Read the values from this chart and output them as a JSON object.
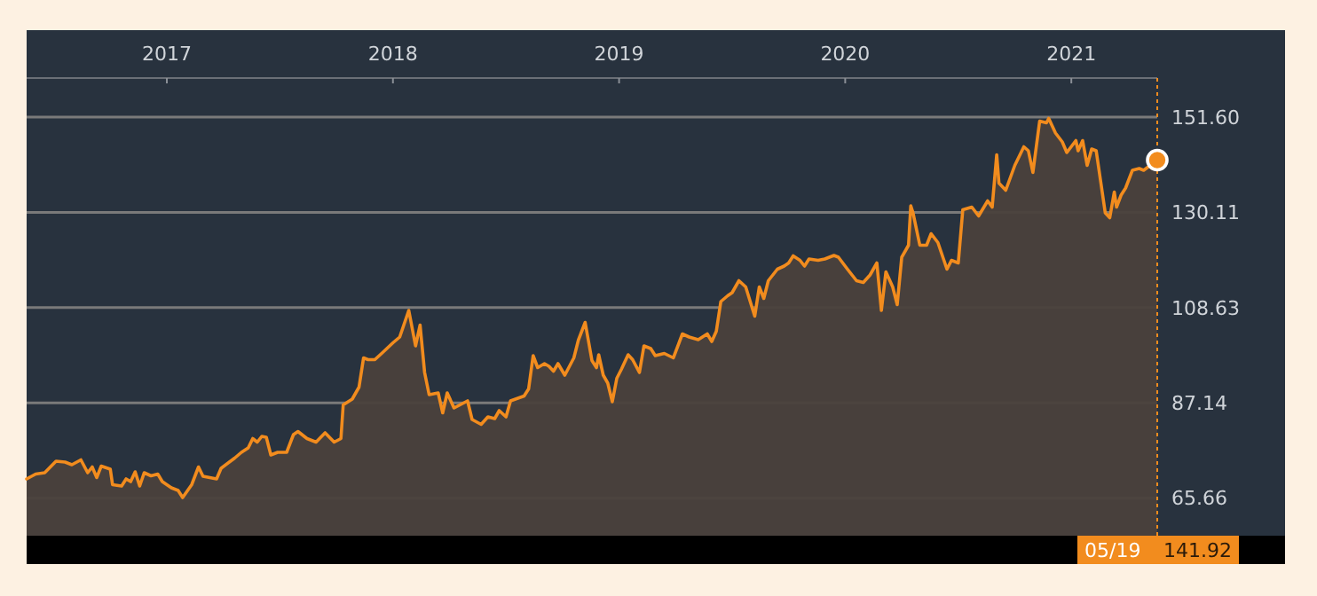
{
  "chart_data": {
    "type": "area",
    "xlim": [
      2016.38,
      2021.38
    ],
    "ylim": [
      57.2,
      160.4
    ],
    "xticks": [
      2017,
      2018,
      2019,
      2020,
      2021
    ],
    "yticks": [
      65.66,
      87.14,
      108.63,
      130.11,
      {
        "value": 151.6,
        "label": "151.60"
      }
    ],
    "grid": "y",
    "marker": "none",
    "line_style": "solid",
    "annotations": [
      "05/19 141.92"
    ],
    "series": [
      {
        "color": "#f28c1e",
        "x": [
          2016.38,
          2016.42,
          2016.46,
          2016.51,
          2016.55,
          2016.58,
          2016.62,
          2016.65,
          2016.67,
          2016.69,
          2016.71,
          2016.75,
          2016.76,
          2016.8,
          2016.82,
          2016.84,
          2016.86,
          2016.88,
          2016.9,
          2016.93,
          2016.96,
          2016.98,
          2017.02,
          2017.05,
          2017.07,
          2017.11,
          2017.14,
          2017.16,
          2017.22,
          2017.24,
          2017.3,
          2017.33,
          2017.36,
          2017.38,
          2017.4,
          2017.42,
          2017.44,
          2017.46,
          2017.49,
          2017.53,
          2017.56,
          2017.58,
          2017.62,
          2017.66,
          2017.7,
          2017.74,
          2017.77,
          2017.78,
          2017.82,
          2017.85,
          2017.87,
          2017.89,
          2017.92,
          2017.95,
          2018.0,
          2018.03,
          2018.07,
          2018.1,
          2018.12,
          2018.14,
          2018.16,
          2018.2,
          2018.22,
          2018.24,
          2018.27,
          2018.33,
          2018.35,
          2018.39,
          2018.42,
          2018.45,
          2018.47,
          2018.5,
          2018.52,
          2018.58,
          2018.6,
          2018.62,
          2018.64,
          2018.67,
          2018.69,
          2018.71,
          2018.73,
          2018.76,
          2018.8,
          2018.82,
          2018.85,
          2018.88,
          2018.9,
          2018.91,
          2018.93,
          2018.95,
          2018.97,
          2018.99,
          2019.01,
          2019.04,
          2019.06,
          2019.09,
          2019.11,
          2019.14,
          2019.16,
          2019.2,
          2019.24,
          2019.28,
          2019.31,
          2019.35,
          2019.39,
          2019.41,
          2019.43,
          2019.45,
          2019.48,
          2019.5,
          2019.53,
          2019.56,
          2019.58,
          2019.6,
          2019.62,
          2019.64,
          2019.66,
          2019.7,
          2019.73,
          2019.75,
          2019.77,
          2019.8,
          2019.82,
          2019.84,
          2019.88,
          2019.91,
          2019.95,
          2019.97,
          2020.01,
          2020.05,
          2020.08,
          2020.11,
          2020.14,
          2020.16,
          2020.18,
          2020.21,
          2020.23,
          2020.25,
          2020.28,
          2020.29,
          2020.3,
          2020.33,
          2020.36,
          2020.38,
          2020.41,
          2020.45,
          2020.47,
          2020.5,
          2020.52,
          2020.56,
          2020.59,
          2020.63,
          2020.65,
          2020.67,
          2020.68,
          2020.71,
          2020.75,
          2020.79,
          2020.81,
          2020.83,
          2020.86,
          2020.89,
          2020.9,
          2020.93,
          2020.96,
          2020.98,
          2021.02,
          2021.03,
          2021.05,
          2021.07,
          2021.09,
          2021.11,
          2021.15,
          2021.17,
          2021.19,
          2021.2,
          2021.22,
          2021.24,
          2021.27,
          2021.3,
          2021.32,
          2021.38
        ],
        "values": [
          70.0,
          71.1,
          71.4,
          74.0,
          73.8,
          73.2,
          74.3,
          71.4,
          72.7,
          70.3,
          72.9,
          72.2,
          68.7,
          68.4,
          70.0,
          69.4,
          71.6,
          68.4,
          71.4,
          70.7,
          71.1,
          69.4,
          68.0,
          67.4,
          65.8,
          68.7,
          72.7,
          70.6,
          70.0,
          72.4,
          74.7,
          76.0,
          77.0,
          79.1,
          78.3,
          79.6,
          79.4,
          75.4,
          76.0,
          76.0,
          80.0,
          80.7,
          79.1,
          78.3,
          80.4,
          78.3,
          79.1,
          86.7,
          88.0,
          90.7,
          97.3,
          96.9,
          96.9,
          98.3,
          100.7,
          102.0,
          108.0,
          100.0,
          104.7,
          94.0,
          89.0,
          89.4,
          84.9,
          89.4,
          86.0,
          87.6,
          83.4,
          82.3,
          84.0,
          83.6,
          85.4,
          84.0,
          87.6,
          88.7,
          90.3,
          97.8,
          95.1,
          96.0,
          95.4,
          94.3,
          96.0,
          93.4,
          97.3,
          101.3,
          105.3,
          96.7,
          95.1,
          98.0,
          93.4,
          91.6,
          87.4,
          92.7,
          94.7,
          98.0,
          96.9,
          94.0,
          100.0,
          99.4,
          97.8,
          98.3,
          97.3,
          102.7,
          102.0,
          101.4,
          102.7,
          101.0,
          103.3,
          110.0,
          111.3,
          112.0,
          114.7,
          113.3,
          110.0,
          106.7,
          113.3,
          110.7,
          114.7,
          117.3,
          118.0,
          118.7,
          120.3,
          119.3,
          118.0,
          119.6,
          119.3,
          119.6,
          120.4,
          120.0,
          117.3,
          114.7,
          114.3,
          116.0,
          118.7,
          108.0,
          116.7,
          113.3,
          109.3,
          120.0,
          122.7,
          131.6,
          130.0,
          122.7,
          122.7,
          125.3,
          123.3,
          117.3,
          119.3,
          118.7,
          130.7,
          131.3,
          129.3,
          132.7,
          131.3,
          143.1,
          136.7,
          135.1,
          140.7,
          144.9,
          144.0,
          139.1,
          150.7,
          150.3,
          151.3,
          148.0,
          146.0,
          143.6,
          146.3,
          144.0,
          146.3,
          140.7,
          144.4,
          144.0,
          130.0,
          128.9,
          134.7,
          131.3,
          134.0,
          135.6,
          139.6,
          140.0,
          139.6,
          141.9
        ]
      }
    ]
  }
}
